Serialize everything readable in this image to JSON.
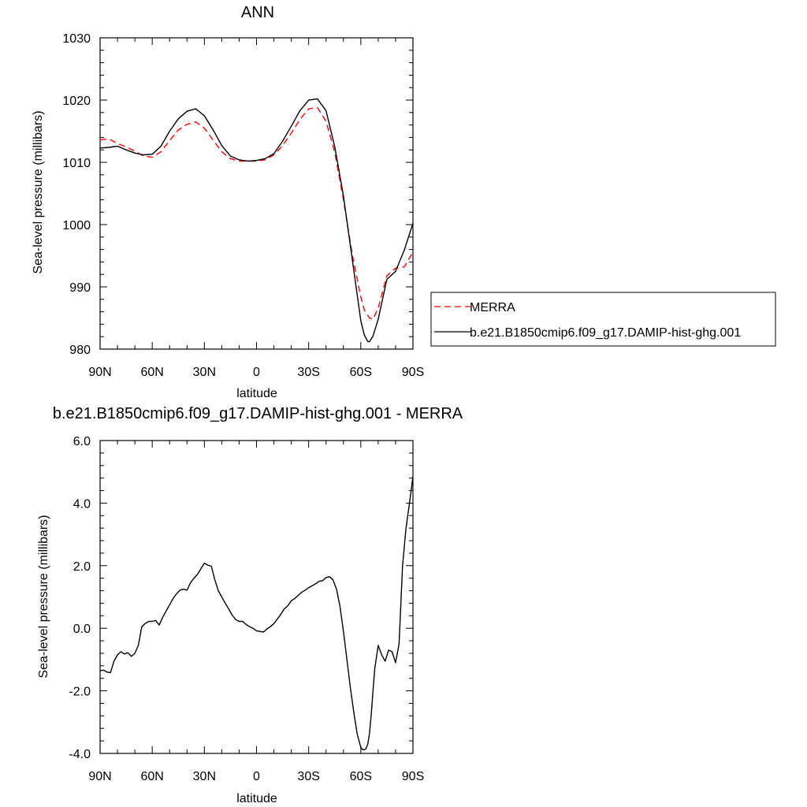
{
  "chart_data": [
    {
      "type": "line",
      "title": "ANN",
      "xlabel": "latitude",
      "ylabel": "Sea-level pressure (millibars)",
      "xlim": [
        90,
        -90
      ],
      "ylim": [
        980,
        1030
      ],
      "xticks": [
        {
          "value": 90,
          "label": "90N"
        },
        {
          "value": 60,
          "label": "60N"
        },
        {
          "value": 30,
          "label": "30N"
        },
        {
          "value": 0,
          "label": "0"
        },
        {
          "value": -30,
          "label": "30S"
        },
        {
          "value": -60,
          "label": "60S"
        },
        {
          "value": -90,
          "label": "90S"
        }
      ],
      "yticks": [
        {
          "value": 980,
          "label": "980"
        },
        {
          "value": 990,
          "label": "990"
        },
        {
          "value": 1000,
          "label": "1000"
        },
        {
          "value": 1010,
          "label": "1010"
        },
        {
          "value": 1020,
          "label": "1020"
        },
        {
          "value": 1030,
          "label": "1030"
        }
      ],
      "legend_position": "right",
      "series": [
        {
          "name": "MERRA",
          "color": "#ff0000",
          "dashed": true,
          "x": [
            90,
            85,
            80,
            75,
            70,
            65,
            60,
            55,
            50,
            45,
            40,
            35,
            30,
            25,
            20,
            15,
            10,
            5,
            0,
            -5,
            -10,
            -15,
            -20,
            -25,
            -30,
            -35,
            -40,
            -45,
            -50,
            -55,
            -60,
            -62,
            -65,
            -67,
            -70,
            -75,
            -80,
            -85,
            -90
          ],
          "y": [
            1013.6,
            1013.8,
            1013.0,
            1012.5,
            1011.8,
            1011.0,
            1010.8,
            1011.7,
            1013.5,
            1015.2,
            1016.1,
            1016.5,
            1015.5,
            1013.6,
            1011.7,
            1010.6,
            1010.2,
            1010.2,
            1010.2,
            1010.4,
            1011.2,
            1012.7,
            1014.7,
            1016.9,
            1018.6,
            1018.8,
            1016.6,
            1011.6,
            1004.0,
            995.3,
            988.4,
            986.3,
            985.0,
            984.8,
            986.6,
            991.8,
            993.0,
            993.2,
            995.6
          ]
        },
        {
          "name": "b.e21.B1850cmip6.f09_g17.DAMIP-hist-ghg.001",
          "color": "#000000",
          "dashed": false,
          "x": [
            90,
            85,
            80,
            75,
            70,
            65,
            60,
            55,
            50,
            45,
            40,
            35,
            30,
            25,
            20,
            15,
            10,
            5,
            0,
            -5,
            -10,
            -15,
            -20,
            -25,
            -30,
            -35,
            -40,
            -45,
            -50,
            -55,
            -58,
            -60,
            -62,
            -64,
            -65,
            -67,
            -70,
            -75,
            -80,
            -85,
            -90
          ],
          "y": [
            1012.3,
            1012.4,
            1012.6,
            1012.0,
            1011.5,
            1011.2,
            1011.3,
            1012.6,
            1015.0,
            1017.0,
            1018.2,
            1018.6,
            1017.5,
            1015.2,
            1012.7,
            1011.0,
            1010.4,
            1010.2,
            1010.3,
            1010.6,
            1011.4,
            1013.4,
            1015.8,
            1018.3,
            1020.0,
            1020.2,
            1018.3,
            1012.5,
            1004.6,
            994.6,
            988.6,
            984.6,
            982.3,
            981.2,
            981.2,
            982.1,
            984.8,
            991.2,
            992.5,
            995.9,
            1000.2
          ]
        }
      ]
    },
    {
      "type": "line",
      "title": "b.e21.B1850cmip6.f09_g17.DAMIP-hist-ghg.001 - MERRA",
      "xlabel": "latitude",
      "ylabel": "Sea-level pressure (millibars)",
      "xlim": [
        90,
        -90
      ],
      "ylim": [
        -4.0,
        6.0
      ],
      "xticks": [
        {
          "value": 90,
          "label": "90N"
        },
        {
          "value": 60,
          "label": "60N"
        },
        {
          "value": 30,
          "label": "30N"
        },
        {
          "value": 0,
          "label": "0"
        },
        {
          "value": -30,
          "label": "30S"
        },
        {
          "value": -60,
          "label": "60S"
        },
        {
          "value": -90,
          "label": "90S"
        }
      ],
      "yticks": [
        {
          "value": -4.0,
          "label": "-4.0"
        },
        {
          "value": -2.0,
          "label": "-2.0"
        },
        {
          "value": 0.0,
          "label": "0.0"
        },
        {
          "value": 2.0,
          "label": "2.0"
        },
        {
          "value": 4.0,
          "label": "4.0"
        },
        {
          "value": 6.0,
          "label": "6.0"
        }
      ],
      "series": [
        {
          "color": "#000000",
          "dashed": false,
          "x": [
            90,
            88,
            86,
            84,
            82,
            80,
            78,
            76,
            74,
            72,
            70,
            68,
            66,
            64,
            62,
            60,
            58,
            56,
            54,
            52,
            50,
            48,
            46,
            44,
            42,
            40,
            38,
            36,
            34,
            32,
            30,
            28,
            26,
            24,
            22,
            20,
            18,
            16,
            14,
            12,
            10,
            8,
            6,
            4,
            2,
            0,
            -2,
            -4,
            -6,
            -8,
            -10,
            -12,
            -14,
            -16,
            -18,
            -20,
            -22,
            -24,
            -26,
            -28,
            -30,
            -32,
            -34,
            -36,
            -38,
            -40,
            -42,
            -44,
            -46,
            -48,
            -50,
            -52,
            -54,
            -56,
            -58,
            -60,
            -61,
            -62,
            -63,
            -64,
            -65,
            -66,
            -67,
            -68,
            -70,
            -72,
            -74,
            -76,
            -78,
            -80,
            -82,
            -84,
            -86,
            -88,
            -90
          ],
          "y": [
            -1.35,
            -1.34,
            -1.4,
            -1.42,
            -1.05,
            -0.85,
            -0.75,
            -0.82,
            -0.78,
            -0.9,
            -0.8,
            -0.55,
            0.05,
            0.15,
            0.22,
            0.22,
            0.25,
            0.1,
            0.35,
            0.55,
            0.75,
            0.95,
            1.1,
            1.22,
            1.25,
            1.22,
            1.45,
            1.6,
            1.72,
            1.9,
            2.08,
            2.02,
            1.98,
            1.55,
            1.2,
            1.0,
            0.8,
            0.62,
            0.42,
            0.28,
            0.22,
            0.22,
            0.12,
            0.05,
            0.0,
            -0.08,
            -0.1,
            -0.12,
            -0.02,
            0.05,
            0.15,
            0.3,
            0.45,
            0.62,
            0.72,
            0.88,
            0.95,
            1.05,
            1.15,
            1.22,
            1.3,
            1.36,
            1.42,
            1.5,
            1.52,
            1.62,
            1.65,
            1.55,
            1.25,
            0.7,
            -0.1,
            -1.0,
            -1.9,
            -2.7,
            -3.4,
            -3.8,
            -3.88,
            -3.88,
            -3.85,
            -3.7,
            -3.35,
            -2.75,
            -2.0,
            -1.3,
            -0.55,
            -0.85,
            -1.05,
            -0.7,
            -0.75,
            -1.1,
            -0.5,
            2.0,
            3.2,
            4.0,
            4.85
          ]
        }
      ]
    }
  ]
}
